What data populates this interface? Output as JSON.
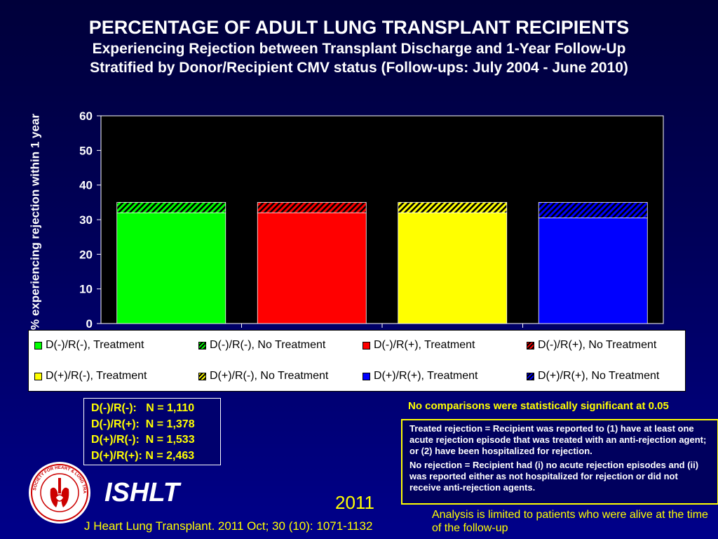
{
  "title": {
    "main": "PERCENTAGE OF ADULT LUNG TRANSPLANT RECIPIENTS",
    "line2": "Experiencing Rejection between Transplant Discharge and 1-Year Follow-Up",
    "line3": "Stratified by Donor/Recipient CMV status (Follow-ups: July 2004 - June 2010)"
  },
  "chart_data": {
    "type": "bar",
    "stacked": true,
    "categories": [
      "D(-)/R(-)",
      "D(-)/R(+)",
      "D(+)/R(-)",
      "D(+)/R(+)"
    ],
    "series": [
      {
        "name": "Treatment",
        "values": [
          32,
          32,
          32,
          30.5
        ]
      },
      {
        "name": "No Treatment",
        "values": [
          3,
          3,
          3,
          4.5
        ]
      }
    ],
    "category_colors": [
      "#00ff00",
      "#ff0000",
      "#ffff00",
      "#0000ff"
    ],
    "ylabel": "% experiencing rejection within 1 year",
    "ylim": [
      0,
      60
    ],
    "yticks": [
      0,
      10,
      20,
      30,
      40,
      50,
      60
    ],
    "plot_background": "#000000",
    "grid": false,
    "legend_placement": "bottom"
  },
  "legend": {
    "items": [
      {
        "label": "D(-)/R(-), Treatment",
        "color": "#00ff00",
        "hatched": false
      },
      {
        "label": "D(-)/R(-), No Treatment",
        "color": "#00ff00",
        "hatched": true
      },
      {
        "label": "D(-)/R(+), Treatment",
        "color": "#ff0000",
        "hatched": false
      },
      {
        "label": "D(-)/R(+), No Treatment",
        "color": "#ff0000",
        "hatched": true
      },
      {
        "label": "D(+)/R(-), Treatment",
        "color": "#ffff00",
        "hatched": false
      },
      {
        "label": "D(+)/R(-), No Treatment",
        "color": "#ffff00",
        "hatched": true
      },
      {
        "label": "D(+)/R(+), Treatment",
        "color": "#0000ff",
        "hatched": false
      },
      {
        "label": "D(+)/R(+), No Treatment",
        "color": "#0000ff",
        "hatched": true
      }
    ]
  },
  "n_box": {
    "rows": [
      "D(-)/R(-):   N = 1,110",
      "D(-)/R(+):  N = 1,378",
      "D(+)/R(-):  N = 1,533",
      "D(+)/R(+): N = 2,463"
    ]
  },
  "stat_note": "No comparisons were statistically significant at 0.05",
  "definitions": {
    "treated": "Treated rejection = Recipient was reported to (1) have at least one acute rejection episode that was treated with an  anti-rejection agent; or (2) have been hospitalized for rejection.",
    "no_rejection": "No rejection  = Recipient had (i) no acute rejection episodes and (ii) was reported either as not hospitalized for rejection or did not receive anti-rejection agents."
  },
  "brand": "ISHLT",
  "logo_text": "INTERNATIONAL SOCIETY FOR HEART & LUNG TRANSPLANTATION",
  "year": "2011",
  "analysis_note": "Analysis is limited to patients who were alive at the time of the follow-up",
  "citation": "J Heart Lung Transplant. 2011 Oct; 30 (10): 1071-1132",
  "colors": {
    "accent_text": "#ffff00",
    "background": "#00005a"
  }
}
